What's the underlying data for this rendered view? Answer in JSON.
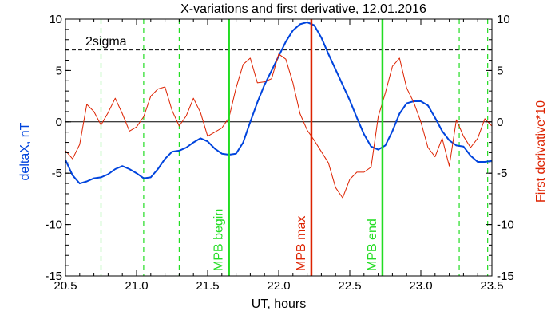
{
  "chart_data": {
    "type": "line",
    "title": "X-variations and first derivative, 12.01.2016",
    "xlabel": "UT, hours",
    "ylabel_left": "deltaX, nT",
    "ylabel_right": "First derivative*10",
    "xlim": [
      20.5,
      23.5
    ],
    "ylim": [
      -15,
      10
    ],
    "x_ticks": [
      20.5,
      21.0,
      21.5,
      22.0,
      22.5,
      23.0,
      23.5
    ],
    "x_tick_labels": [
      "20.5",
      "21.0",
      "21.5",
      "22.0",
      "22.5",
      "23.0",
      "23.5"
    ],
    "y_ticks": [
      -15,
      -10,
      -5,
      0,
      5,
      10
    ],
    "y_tick_labels": [
      "-15",
      "-10",
      "-5",
      "0",
      "5",
      "10"
    ],
    "colors": {
      "deltaX": "#0044dd",
      "derivative": "#dd2200",
      "mpb_boundary": "#22dd22",
      "mpb_max": "#dd2200",
      "reference": "#000000"
    },
    "reference_lines": [
      {
        "label": "2sigma",
        "y": 7,
        "style": "dashed"
      },
      {
        "label": "",
        "y": 0,
        "style": "solid"
      }
    ],
    "vertical_markers": [
      {
        "label": "MPB begin",
        "x": 21.65,
        "color": "#22dd22",
        "style": "solid"
      },
      {
        "label": "MPB max",
        "x": 22.23,
        "color": "#dd2200",
        "style": "solid"
      },
      {
        "label": "MPB end",
        "x": 22.73,
        "color": "#22dd22",
        "style": "solid"
      }
    ],
    "dashed_markers": [
      20.75,
      21.05,
      21.3,
      23.27,
      23.47
    ],
    "series": [
      {
        "name": "deltaX, nT",
        "color": "#0044dd",
        "x": [
          20.5,
          20.55,
          20.6,
          20.65,
          20.7,
          20.75,
          20.8,
          20.85,
          20.9,
          20.95,
          21.0,
          21.05,
          21.1,
          21.15,
          21.2,
          21.25,
          21.3,
          21.35,
          21.4,
          21.45,
          21.5,
          21.55,
          21.6,
          21.65,
          21.7,
          21.75,
          21.8,
          21.85,
          21.9,
          21.95,
          22.0,
          22.05,
          22.1,
          22.15,
          22.2,
          22.25,
          22.3,
          22.35,
          22.4,
          22.45,
          22.5,
          22.55,
          22.6,
          22.65,
          22.7,
          22.75,
          22.8,
          22.85,
          22.9,
          22.95,
          23.0,
          23.05,
          23.1,
          23.15,
          23.2,
          23.25,
          23.3,
          23.35,
          23.4,
          23.45,
          23.5
        ],
        "y": [
          -3.7,
          -5.2,
          -6.0,
          -5.8,
          -5.5,
          -5.4,
          -5.1,
          -4.6,
          -4.3,
          -4.6,
          -5.0,
          -5.5,
          -5.4,
          -4.6,
          -3.6,
          -2.9,
          -2.8,
          -2.5,
          -2.0,
          -1.6,
          -1.9,
          -2.6,
          -3.1,
          -3.2,
          -3.1,
          -2.0,
          0.0,
          1.9,
          3.6,
          5.0,
          6.4,
          7.8,
          8.9,
          9.5,
          9.7,
          9.4,
          8.2,
          6.6,
          5.1,
          3.6,
          2.1,
          0.4,
          -1.2,
          -2.4,
          -2.7,
          -2.3,
          -0.9,
          0.8,
          1.8,
          2.0,
          2.0,
          1.6,
          0.4,
          -0.9,
          -1.8,
          -2.3,
          -2.4,
          -3.3,
          -3.9,
          -3.9,
          -3.8
        ]
      },
      {
        "name": "First derivative*10",
        "color": "#dd2200",
        "x": [
          20.5,
          20.55,
          20.6,
          20.65,
          20.7,
          20.75,
          20.8,
          20.85,
          20.9,
          20.95,
          21.0,
          21.05,
          21.1,
          21.15,
          21.2,
          21.25,
          21.3,
          21.35,
          21.4,
          21.45,
          21.5,
          21.55,
          21.6,
          21.65,
          21.7,
          21.75,
          21.8,
          21.85,
          21.9,
          21.95,
          22.0,
          22.05,
          22.1,
          22.15,
          22.2,
          22.25,
          22.3,
          22.35,
          22.4,
          22.45,
          22.5,
          22.55,
          22.6,
          22.65,
          22.7,
          22.75,
          22.8,
          22.85,
          22.9,
          22.95,
          23.0,
          23.05,
          23.1,
          23.15,
          23.2,
          23.25,
          23.3,
          23.35,
          23.4,
          23.45,
          23.5
        ],
        "y": [
          -2.8,
          -3.6,
          -2.2,
          1.7,
          1.0,
          -0.3,
          0.9,
          2.3,
          0.8,
          -0.9,
          -0.5,
          0.5,
          2.5,
          3.2,
          3.4,
          1.1,
          -0.4,
          0.6,
          2.3,
          0.9,
          -1.4,
          -1.0,
          -0.6,
          0.4,
          3.3,
          5.6,
          6.2,
          3.8,
          3.9,
          4.2,
          6.6,
          6.1,
          3.8,
          0.8,
          -0.8,
          -1.8,
          -2.9,
          -4.0,
          -6.4,
          -7.4,
          -5.6,
          -4.9,
          -4.9,
          -4.4,
          0.5,
          2.8,
          5.4,
          6.2,
          3.3,
          1.9,
          0.0,
          -2.5,
          -3.4,
          -1.6,
          -4.3,
          0.2,
          -1.4,
          -2.5,
          -1.6,
          0.3,
          -0.4
        ]
      }
    ]
  }
}
